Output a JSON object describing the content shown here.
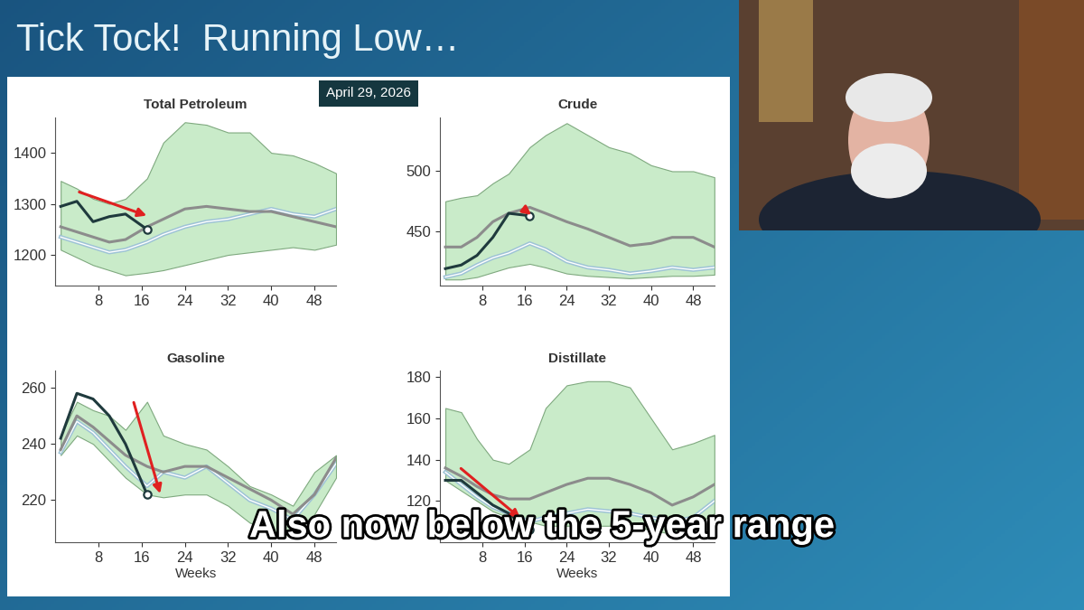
{
  "slide_title": "Tick Tock!  Running Low…",
  "date": "April 29, 2026",
  "caption": "Also now below the 5-year range",
  "chart_data": [
    {
      "type": "line",
      "title": "Total Petroleum",
      "x": [
        1,
        4,
        7,
        10,
        13,
        17,
        20,
        24,
        28,
        32,
        36,
        40,
        44,
        48,
        52
      ],
      "xlim": [
        0,
        52
      ],
      "xticks": [
        8,
        16,
        24,
        32,
        40,
        48
      ],
      "ylim": [
        1140,
        1470
      ],
      "yticks": [
        1200,
        1300,
        1400
      ],
      "series": [
        {
          "type": "band",
          "color": "#c9ebc9",
          "low": [
            1210,
            1195,
            1180,
            1170,
            1160,
            1165,
            1170,
            1180,
            1190,
            1200,
            1205,
            1210,
            1215,
            1210,
            1220
          ],
          "high": [
            1345,
            1330,
            1310,
            1300,
            1310,
            1350,
            1420,
            1460,
            1455,
            1440,
            1440,
            1400,
            1395,
            1380,
            1360
          ]
        },
        {
          "color": "#9ec3d6",
          "line_style": "double",
          "values": [
            1235,
            1225,
            1215,
            1205,
            1210,
            1225,
            1240,
            1255,
            1265,
            1270,
            1280,
            1290,
            1280,
            1275,
            1290
          ]
        },
        {
          "color": "#8c8c8c",
          "values": [
            1255,
            1245,
            1235,
            1225,
            1230,
            1255,
            1270,
            1290,
            1295,
            1290,
            1285,
            1285,
            1275,
            1265,
            1255
          ]
        },
        {
          "color": "#1f3a3d",
          "marker": "circle",
          "values": [
            1295,
            1305,
            1265,
            1275,
            1280,
            1250,
            null,
            null,
            null,
            null,
            null,
            null,
            null,
            null,
            null
          ]
        }
      ]
    },
    {
      "type": "line",
      "title": "Crude",
      "x": [
        1,
        4,
        7,
        10,
        13,
        17,
        20,
        24,
        28,
        32,
        36,
        40,
        44,
        48,
        52
      ],
      "xlim": [
        0,
        52
      ],
      "xticks": [
        8,
        16,
        24,
        32,
        40,
        48
      ],
      "ylim": [
        405,
        545
      ],
      "yticks": [
        450,
        500
      ],
      "series": [
        {
          "type": "band",
          "color": "#c9ebc9",
          "low": [
            410,
            410,
            412,
            416,
            420,
            423,
            420,
            415,
            413,
            412,
            411,
            412,
            413,
            413,
            414
          ],
          "high": [
            475,
            478,
            480,
            490,
            498,
            520,
            530,
            540,
            530,
            520,
            515,
            505,
            500,
            500,
            495
          ]
        },
        {
          "color": "#9ec3d6",
          "line_style": "double",
          "values": [
            412,
            415,
            422,
            428,
            432,
            440,
            435,
            425,
            420,
            418,
            415,
            417,
            420,
            418,
            420
          ]
        },
        {
          "color": "#8c8c8c",
          "values": [
            437,
            437,
            445,
            458,
            465,
            470,
            465,
            458,
            452,
            445,
            438,
            440,
            445,
            445,
            437
          ]
        },
        {
          "color": "#1f3a3d",
          "marker": "circle",
          "values": [
            419,
            422,
            430,
            445,
            465,
            463,
            null,
            null,
            null,
            null,
            null,
            null,
            null,
            null,
            null
          ]
        }
      ]
    },
    {
      "type": "line",
      "title": "Gasoline",
      "xlabel": "Weeks",
      "x": [
        1,
        4,
        7,
        10,
        13,
        17,
        20,
        24,
        28,
        32,
        36,
        40,
        44,
        48,
        52
      ],
      "xlim": [
        0,
        52
      ],
      "xticks": [
        8,
        16,
        24,
        32,
        40,
        48
      ],
      "ylim": [
        205,
        266
      ],
      "yticks": [
        220,
        240,
        260
      ],
      "series": [
        {
          "type": "band",
          "color": "#c9ebc9",
          "low": [
            236,
            243,
            240,
            234,
            228,
            222,
            221,
            222,
            222,
            218,
            212,
            209,
            207,
            215,
            228
          ],
          "high": [
            243,
            255,
            252,
            250,
            245,
            255,
            243,
            240,
            238,
            232,
            225,
            222,
            218,
            230,
            236
          ]
        },
        {
          "color": "#9ec3d6",
          "line_style": "double",
          "values": [
            237,
            248,
            244,
            238,
            232,
            225,
            230,
            228,
            232,
            226,
            220,
            217,
            213,
            222,
            233
          ]
        },
        {
          "color": "#8c8c8c",
          "values": [
            238,
            250,
            246,
            241,
            236,
            232,
            230,
            232,
            232,
            228,
            224,
            220,
            215,
            222,
            235
          ]
        },
        {
          "color": "#1f3a3d",
          "marker": "circle",
          "values": [
            242,
            258,
            256,
            250,
            240,
            222,
            null,
            null,
            null,
            null,
            null,
            null,
            null,
            null,
            null
          ]
        }
      ]
    },
    {
      "type": "line",
      "title": "Distillate",
      "xlabel": "Weeks",
      "x": [
        1,
        4,
        7,
        10,
        13,
        17,
        20,
        24,
        28,
        32,
        36,
        40,
        44,
        48,
        52
      ],
      "xlim": [
        0,
        52
      ],
      "xticks": [
        8,
        16,
        24,
        32,
        40,
        48
      ],
      "ylim": [
        100,
        183
      ],
      "yticks": [
        120,
        140,
        160,
        180
      ],
      "series": [
        {
          "type": "band",
          "color": "#c9ebc9",
          "low": [
            130,
            125,
            120,
            115,
            112,
            110,
            108,
            108,
            108,
            108,
            108,
            106,
            104,
            108,
            114
          ],
          "high": [
            165,
            163,
            150,
            140,
            138,
            145,
            165,
            176,
            178,
            178,
            175,
            160,
            145,
            148,
            152
          ]
        },
        {
          "color": "#9ec3d6",
          "line_style": "double",
          "values": [
            134,
            128,
            122,
            117,
            114,
            110,
            112,
            114,
            116,
            115,
            114,
            112,
            110,
            112,
            120
          ]
        },
        {
          "color": "#8c8c8c",
          "values": [
            136,
            132,
            127,
            123,
            121,
            121,
            124,
            128,
            131,
            131,
            128,
            124,
            118,
            122,
            128
          ]
        },
        {
          "color": "#1f3a3d",
          "marker": "circle",
          "values": [
            130,
            130,
            124,
            118,
            114,
            106,
            null,
            null,
            null,
            null,
            null,
            null,
            null,
            null,
            null
          ]
        }
      ]
    }
  ]
}
